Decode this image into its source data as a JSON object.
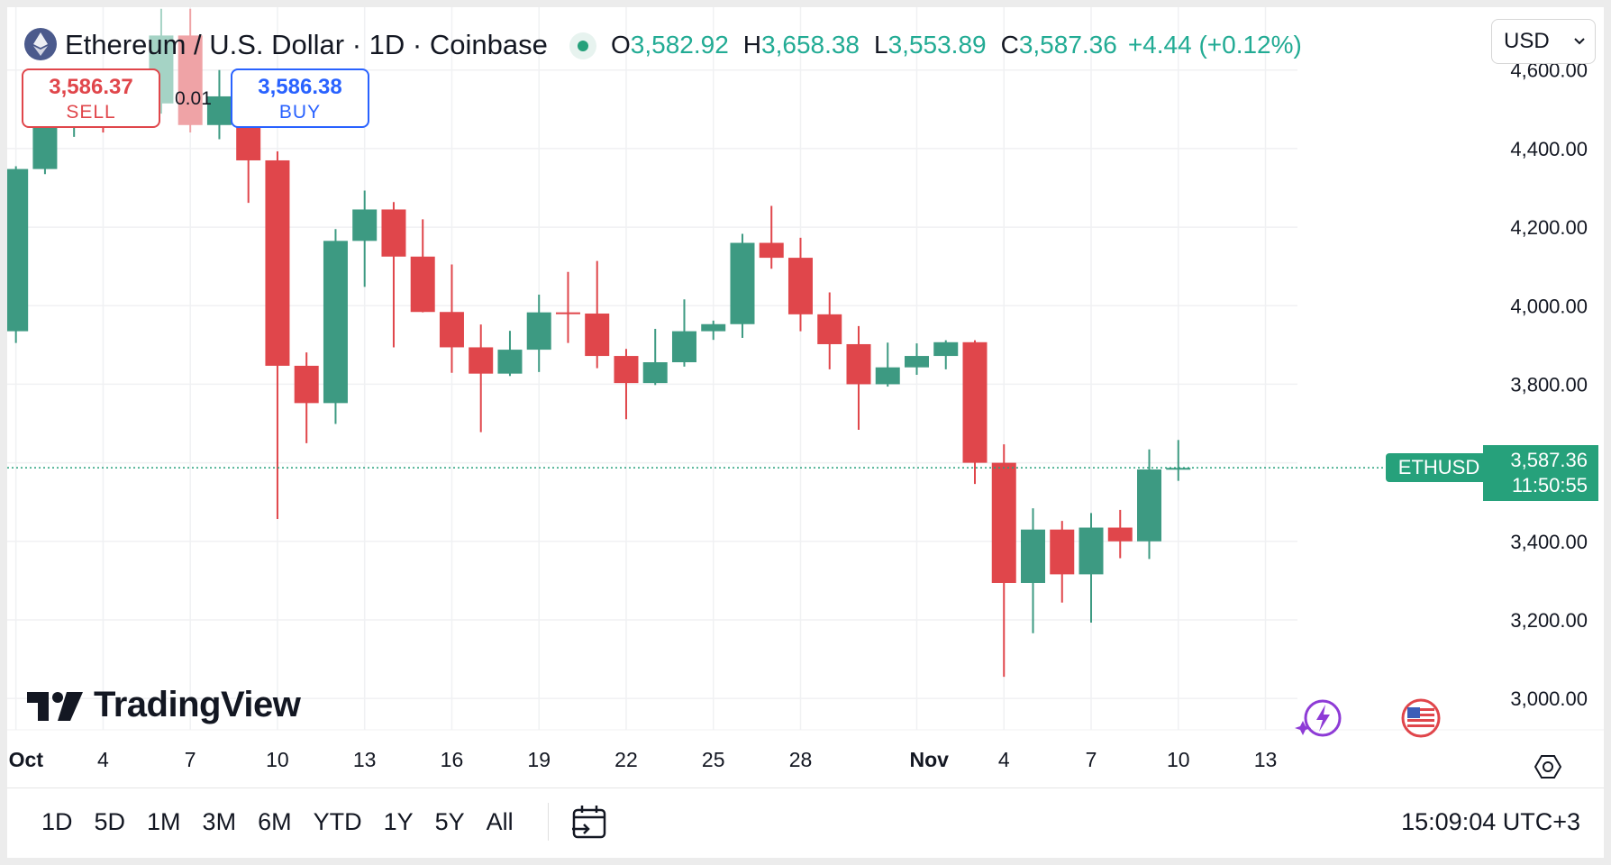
{
  "header": {
    "symbol_title": "Ethereum / U.S. Dollar · 1D · Coinbase",
    "ohlc": {
      "o_label": "O",
      "o_value": "3,582.92",
      "h_label": "H",
      "h_value": "3,658.38",
      "l_label": "L",
      "l_value": "3,553.89",
      "c_label": "C",
      "c_value": "3,587.36",
      "change": "+4.44 (+0.12%)"
    },
    "currency": "USD"
  },
  "trade": {
    "sell_price": "3,586.37",
    "sell_label": "SELL",
    "quantity": "0.01",
    "buy_price": "3,586.38",
    "buy_label": "BUY"
  },
  "brand": {
    "logo_text": "TradingView"
  },
  "price_label": {
    "symbol": "ETHUSD",
    "price": "3,587.36",
    "countdown": "11:50:55"
  },
  "bottom_bar": {
    "ranges": [
      "1D",
      "5D",
      "1M",
      "3M",
      "6M",
      "YTD",
      "1Y",
      "5Y",
      "All"
    ],
    "clock": "15:09:04 UTC+3"
  },
  "colors": {
    "up": "#3d9a82",
    "down": "#e0464b",
    "up_light": "#a5d3c5",
    "down_light": "#efa3a6"
  },
  "chart_data": {
    "type": "candlestick",
    "symbol": "ETHUSD",
    "ylim": [
      2920,
      4760
    ],
    "y_ticks": [
      3000,
      3200,
      3400,
      3600,
      3800,
      4000,
      4200,
      4400,
      4600
    ],
    "y_tick_labels": [
      "3,000.00",
      "3,200.00",
      "3,400.00",
      "3,600.00",
      "3,800.00",
      "4,000.00",
      "4,200.00",
      "4,400.00",
      "4,600.00"
    ],
    "x_ticks": [
      {
        "day": 1,
        "label": "Oct",
        "bold": true
      },
      {
        "day": 4,
        "label": "4"
      },
      {
        "day": 7,
        "label": "7"
      },
      {
        "day": 10,
        "label": "10"
      },
      {
        "day": 13,
        "label": "13"
      },
      {
        "day": 16,
        "label": "16"
      },
      {
        "day": 19,
        "label": "19"
      },
      {
        "day": 22,
        "label": "22"
      },
      {
        "day": 25,
        "label": "25"
      },
      {
        "day": 28,
        "label": "28"
      },
      {
        "day": 32,
        "label": "Nov",
        "bold": true
      },
      {
        "day": 35,
        "label": "4"
      },
      {
        "day": 38,
        "label": "7"
      },
      {
        "day": 41,
        "label": "10"
      },
      {
        "day": 44,
        "label": "13"
      }
    ],
    "day_range": [
      0.7,
      45.1
    ],
    "last_price": 3587.36,
    "candles": [
      {
        "date": "Oct 1",
        "o": 3935,
        "h": 4355,
        "l": 3905,
        "c": 4348
      },
      {
        "date": "Oct 2",
        "o": 4348,
        "h": 4516,
        "l": 4335,
        "c": 4488
      },
      {
        "date": "Oct 3",
        "o": 4488,
        "h": 4580,
        "l": 4430,
        "c": 4514
      },
      {
        "date": "Oct 4",
        "o": 4514,
        "h": 4560,
        "l": 4441,
        "c": 4490
      },
      {
        "date": "Oct 5",
        "o": 4490,
        "h": 4548,
        "l": 4470,
        "c": 4515
      },
      {
        "date": "Oct 6",
        "o": 4515,
        "h": 4756,
        "l": 4489,
        "c": 4688
      },
      {
        "date": "Oct 7",
        "o": 4688,
        "h": 4756,
        "l": 4441,
        "c": 4460
      },
      {
        "date": "Oct 8",
        "o": 4460,
        "h": 4600,
        "l": 4424,
        "c": 4533
      },
      {
        "date": "Oct 9",
        "o": 4533,
        "h": 4540,
        "l": 4262,
        "c": 4370
      },
      {
        "date": "Oct 10",
        "o": 4370,
        "h": 4393,
        "l": 3457,
        "c": 3847
      },
      {
        "date": "Oct 11",
        "o": 3847,
        "h": 3881,
        "l": 3650,
        "c": 3752
      },
      {
        "date": "Oct 12",
        "o": 3752,
        "h": 4195,
        "l": 3699,
        "c": 4165
      },
      {
        "date": "Oct 13",
        "o": 4165,
        "h": 4293,
        "l": 4048,
        "c": 4245
      },
      {
        "date": "Oct 14",
        "o": 4245,
        "h": 4264,
        "l": 3894,
        "c": 4125
      },
      {
        "date": "Oct 15",
        "o": 4125,
        "h": 4220,
        "l": 3983,
        "c": 3984
      },
      {
        "date": "Oct 16",
        "o": 3984,
        "h": 4105,
        "l": 3829,
        "c": 3894
      },
      {
        "date": "Oct 17",
        "o": 3894,
        "h": 3952,
        "l": 3678,
        "c": 3827
      },
      {
        "date": "Oct 18",
        "o": 3827,
        "h": 3936,
        "l": 3821,
        "c": 3888
      },
      {
        "date": "Oct 19",
        "o": 3888,
        "h": 4028,
        "l": 3831,
        "c": 3983
      },
      {
        "date": "Oct 20",
        "o": 3983,
        "h": 4086,
        "l": 3905,
        "c": 3980
      },
      {
        "date": "Oct 21",
        "o": 3980,
        "h": 4114,
        "l": 3841,
        "c": 3872
      },
      {
        "date": "Oct 22",
        "o": 3872,
        "h": 3890,
        "l": 3711,
        "c": 3803
      },
      {
        "date": "Oct 23",
        "o": 3803,
        "h": 3941,
        "l": 3798,
        "c": 3856
      },
      {
        "date": "Oct 24",
        "o": 3856,
        "h": 4016,
        "l": 3845,
        "c": 3935
      },
      {
        "date": "Oct 25",
        "o": 3935,
        "h": 3962,
        "l": 3913,
        "c": 3953
      },
      {
        "date": "Oct 26",
        "o": 3953,
        "h": 4183,
        "l": 3918,
        "c": 4160
      },
      {
        "date": "Oct 27",
        "o": 4160,
        "h": 4254,
        "l": 4094,
        "c": 4122
      },
      {
        "date": "Oct 28",
        "o": 4122,
        "h": 4173,
        "l": 3935,
        "c": 3978
      },
      {
        "date": "Oct 29",
        "o": 3978,
        "h": 4034,
        "l": 3838,
        "c": 3902
      },
      {
        "date": "Oct 30",
        "o": 3902,
        "h": 3948,
        "l": 3684,
        "c": 3800
      },
      {
        "date": "Oct 31",
        "o": 3800,
        "h": 3906,
        "l": 3794,
        "c": 3843
      },
      {
        "date": "Nov 1",
        "o": 3843,
        "h": 3904,
        "l": 3824,
        "c": 3872
      },
      {
        "date": "Nov 2",
        "o": 3872,
        "h": 3912,
        "l": 3838,
        "c": 3907
      },
      {
        "date": "Nov 3",
        "o": 3907,
        "h": 3912,
        "l": 3546,
        "c": 3600
      },
      {
        "date": "Nov 4",
        "o": 3600,
        "h": 3647,
        "l": 3055,
        "c": 3294
      },
      {
        "date": "Nov 5",
        "o": 3294,
        "h": 3484,
        "l": 3166,
        "c": 3430
      },
      {
        "date": "Nov 6",
        "o": 3430,
        "h": 3452,
        "l": 3244,
        "c": 3316
      },
      {
        "date": "Nov 7",
        "o": 3316,
        "h": 3472,
        "l": 3193,
        "c": 3435
      },
      {
        "date": "Nov 8",
        "o": 3435,
        "h": 3480,
        "l": 3357,
        "c": 3400
      },
      {
        "date": "Nov 9",
        "o": 3400,
        "h": 3634,
        "l": 3355,
        "c": 3583
      },
      {
        "date": "Nov 10",
        "o": 3583,
        "h": 3658,
        "l": 3554,
        "c": 3587
      }
    ]
  }
}
